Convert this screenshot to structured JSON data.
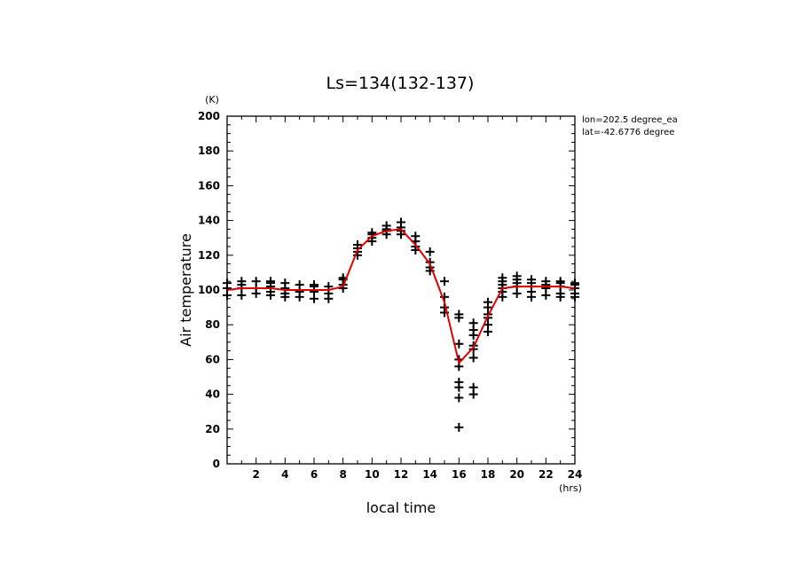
{
  "chart_data": {
    "type": "scatter",
    "title": "Ls=134(132-137)",
    "xlabel": "local time",
    "ylabel": "Air temperature",
    "x_unit": "(hrs)",
    "y_unit": "(K)",
    "xlim": [
      0,
      24
    ],
    "ylim": [
      0,
      200
    ],
    "x_ticks": [
      2,
      4,
      6,
      8,
      10,
      12,
      14,
      16,
      18,
      20,
      22,
      24
    ],
    "y_ticks": [
      0,
      20,
      40,
      60,
      80,
      100,
      120,
      140,
      160,
      180,
      200
    ],
    "annotations": [
      "lon=202.5 degree_ea",
      "lat=-42.6776 degree"
    ],
    "grid": false,
    "series": [
      {
        "style": "plus-markers",
        "color": "#000000",
        "points": [
          [
            0,
            97
          ],
          [
            0,
            101
          ],
          [
            0,
            104
          ],
          [
            1,
            97
          ],
          [
            1,
            101
          ],
          [
            1,
            103
          ],
          [
            1,
            105
          ],
          [
            2,
            98
          ],
          [
            2,
            101
          ],
          [
            2,
            105
          ],
          [
            3,
            97
          ],
          [
            3,
            99
          ],
          [
            3,
            102
          ],
          [
            3,
            104
          ],
          [
            3,
            105
          ],
          [
            4,
            96
          ],
          [
            4,
            98
          ],
          [
            4,
            101
          ],
          [
            4,
            104
          ],
          [
            5,
            96
          ],
          [
            5,
            99
          ],
          [
            5,
            103
          ],
          [
            6,
            95
          ],
          [
            6,
            99
          ],
          [
            6,
            102
          ],
          [
            6,
            103
          ],
          [
            7,
            95
          ],
          [
            7,
            98
          ],
          [
            7,
            102
          ],
          [
            8,
            101
          ],
          [
            8,
            103
          ],
          [
            8,
            106
          ],
          [
            8,
            107
          ],
          [
            9,
            120
          ],
          [
            9,
            122
          ],
          [
            9,
            124
          ],
          [
            9,
            126
          ],
          [
            10,
            128
          ],
          [
            10,
            130
          ],
          [
            10,
            132
          ],
          [
            10,
            133
          ],
          [
            11,
            132
          ],
          [
            11,
            134
          ],
          [
            11,
            135
          ],
          [
            11,
            137
          ],
          [
            12,
            132
          ],
          [
            12,
            134
          ],
          [
            12,
            136
          ],
          [
            12,
            139
          ],
          [
            13,
            123
          ],
          [
            13,
            125
          ],
          [
            13,
            128
          ],
          [
            13,
            131
          ],
          [
            14,
            111
          ],
          [
            14,
            113
          ],
          [
            14,
            116
          ],
          [
            14,
            122
          ],
          [
            15,
            87
          ],
          [
            15,
            90
          ],
          [
            15,
            96
          ],
          [
            15,
            105
          ],
          [
            16,
            21
          ],
          [
            16,
            38
          ],
          [
            16,
            44
          ],
          [
            16,
            47
          ],
          [
            16,
            56
          ],
          [
            16,
            60
          ],
          [
            16,
            69
          ],
          [
            16,
            84
          ],
          [
            16,
            86
          ],
          [
            17,
            40
          ],
          [
            17,
            44
          ],
          [
            17,
            61
          ],
          [
            17,
            66
          ],
          [
            17,
            68
          ],
          [
            17,
            74
          ],
          [
            17,
            77
          ],
          [
            17,
            81
          ],
          [
            18,
            76
          ],
          [
            18,
            80
          ],
          [
            18,
            84
          ],
          [
            18,
            86
          ],
          [
            18,
            90
          ],
          [
            18,
            93
          ],
          [
            19,
            96
          ],
          [
            19,
            99
          ],
          [
            19,
            101
          ],
          [
            19,
            103
          ],
          [
            19,
            105
          ],
          [
            19,
            107
          ],
          [
            20,
            98
          ],
          [
            20,
            102
          ],
          [
            20,
            104
          ],
          [
            20,
            106
          ],
          [
            20,
            108
          ],
          [
            21,
            96
          ],
          [
            21,
            99
          ],
          [
            21,
            102
          ],
          [
            21,
            104
          ],
          [
            21,
            106
          ],
          [
            22,
            97
          ],
          [
            22,
            101
          ],
          [
            22,
            103
          ],
          [
            22,
            105
          ],
          [
            23,
            96
          ],
          [
            23,
            98
          ],
          [
            23,
            102
          ],
          [
            23,
            104
          ],
          [
            23,
            105
          ],
          [
            24,
            96
          ],
          [
            24,
            98
          ],
          [
            24,
            101
          ],
          [
            24,
            103
          ],
          [
            24,
            104
          ]
        ]
      },
      {
        "style": "line",
        "color": "#e00000",
        "x": [
          0,
          1,
          2,
          3,
          4,
          5,
          6,
          7,
          8,
          9,
          10,
          11,
          12,
          13,
          14,
          15,
          16,
          17,
          18,
          19,
          20,
          21,
          22,
          23,
          24
        ],
        "values": [
          100,
          101,
          101,
          101,
          100,
          100,
          100,
          100,
          102,
          123,
          131,
          134,
          135,
          126,
          115,
          93,
          58,
          67,
          85,
          101,
          102,
          102,
          102,
          102,
          101
        ]
      }
    ]
  }
}
